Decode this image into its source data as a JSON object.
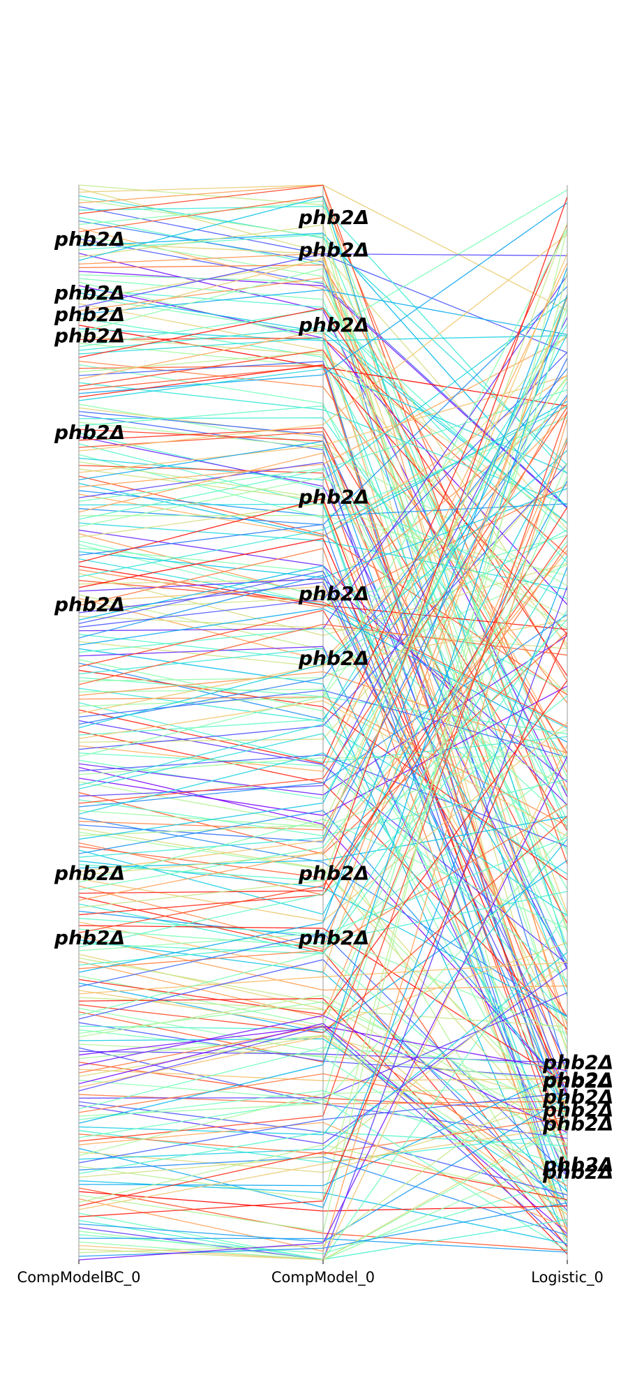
{
  "chart_data": {
    "type": "parallel_coordinates",
    "title": "",
    "axes": [
      "CompModelBC_0",
      "CompModel_0",
      "Logistic_0"
    ],
    "axis_range": [
      0,
      1
    ],
    "ranking": "rank order along each axis (1 = top)",
    "n_lines_approx": 300,
    "colormap": "rainbow",
    "highlight_label": "phb2Δ",
    "highlights": [
      {
        "label": "phb2Δ",
        "values": [
          0.95,
          0.97,
          0.14
        ]
      },
      {
        "label": "phb2Δ",
        "values": [
          0.9,
          0.87,
          0.127
        ]
      },
      {
        "label": "phb2Δ",
        "values": [
          0.77,
          0.71,
          0.152
        ]
      },
      {
        "label": "phb2Δ",
        "values": [
          0.61,
          0.62,
          0.082
        ]
      },
      {
        "label": "phb2Δ",
        "values": [
          0.36,
          0.36,
          0.168
        ]
      },
      {
        "label": "phb2Δ",
        "values": [
          0.3,
          0.3,
          0.167
        ]
      },
      {
        "label": "phb2Δ",
        "values": [
          0.88,
          0.56,
          0.184
        ]
      },
      {
        "label": "phb2Δ",
        "values": [
          0.86,
          0.94,
          0.089
        ]
      }
    ],
    "grid": false,
    "legend": "none"
  }
}
